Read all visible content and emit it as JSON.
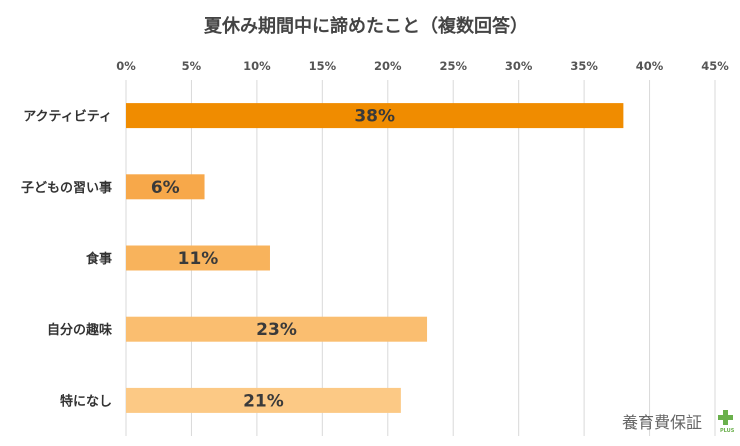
{
  "chart_data": {
    "type": "bar",
    "orientation": "horizontal",
    "title": "夏休み期間中に諦めたこと（複数回答）",
    "categories": [
      "アクティビティ",
      "子どもの習い事",
      "食事",
      "自分の趣味",
      "特になし"
    ],
    "values": [
      38,
      6,
      11,
      23,
      21
    ],
    "data_labels": [
      "38%",
      "6%",
      "11%",
      "23%",
      "21%"
    ],
    "xlim": [
      0,
      45
    ],
    "x_ticks": [
      "0%",
      "5%",
      "10%",
      "15%",
      "20%",
      "25%",
      "30%",
      "35%",
      "40%",
      "45%"
    ],
    "x_axis_position": "top",
    "grid": true,
    "bar_colors": [
      "#f08c00",
      "#f7a84a",
      "#f8b35c",
      "#fabe70",
      "#fcc985"
    ]
  },
  "watermark": {
    "text": "養育費保証",
    "plus": "PLUS"
  }
}
